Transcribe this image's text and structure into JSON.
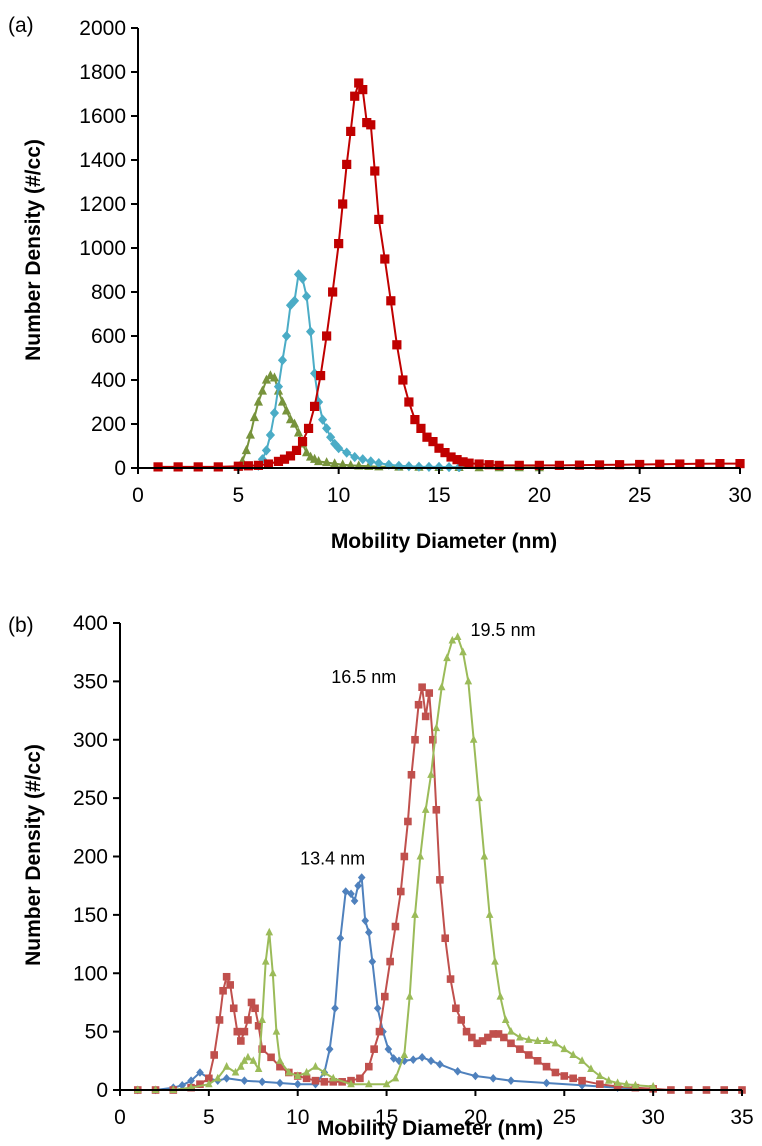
{
  "chart_data": [
    {
      "type": "line",
      "panel_label": "(a)",
      "xlabel": "Mobility Diameter (nm)",
      "ylabel": "Number Density (#/cc)",
      "xlim": [
        0,
        30
      ],
      "ylim": [
        0,
        2000
      ],
      "xticks": [
        0,
        5,
        10,
        15,
        20,
        25,
        30
      ],
      "yticks": [
        0,
        200,
        400,
        600,
        800,
        1000,
        1200,
        1400,
        1600,
        1800,
        2000
      ],
      "grid": false,
      "legend": "none",
      "annotations": [],
      "series": [
        {
          "color": "#77933c",
          "marker": "triangle",
          "x": [
            5.0,
            5.2,
            5.4,
            5.6,
            5.8,
            6.0,
            6.2,
            6.4,
            6.6,
            6.8,
            7.0,
            7.2,
            7.4,
            7.6,
            7.8,
            8.0,
            8.2,
            8.4,
            8.6,
            8.8,
            9.0,
            9.4,
            9.8,
            10.2,
            10.6,
            11.0,
            11.5,
            12.0,
            13.0,
            14.0,
            15.0,
            16.0,
            17.0,
            18.0,
            19.0,
            20.0
          ],
          "y": [
            5,
            30,
            80,
            150,
            230,
            300,
            350,
            400,
            420,
            410,
            350,
            300,
            260,
            220,
            200,
            160,
            110,
            70,
            50,
            40,
            30,
            25,
            20,
            15,
            12,
            10,
            8,
            6,
            5,
            4,
            3,
            3,
            2,
            2,
            2,
            2
          ]
        },
        {
          "color": "#4bacc6",
          "marker": "diamond",
          "x": [
            6.0,
            6.2,
            6.4,
            6.6,
            6.8,
            7.0,
            7.2,
            7.4,
            7.6,
            7.8,
            8.0,
            8.2,
            8.4,
            8.6,
            8.8,
            9.0,
            9.2,
            9.4,
            9.6,
            9.8,
            10.0,
            10.4,
            10.8,
            11.2,
            11.6,
            12.0,
            12.5,
            13.0,
            13.5,
            14.0,
            14.5,
            15.0,
            15.5,
            16.0
          ],
          "y": [
            10,
            40,
            80,
            150,
            250,
            370,
            490,
            600,
            740,
            760,
            880,
            860,
            780,
            620,
            430,
            300,
            220,
            180,
            140,
            110,
            90,
            70,
            50,
            40,
            30,
            22,
            15,
            10,
            8,
            6,
            5,
            5,
            4,
            3
          ]
        },
        {
          "color": "#c00000",
          "marker": "square",
          "x": [
            1,
            2,
            3,
            4,
            5,
            5.5,
            6,
            6.5,
            7,
            7.3,
            7.6,
            7.9,
            8.2,
            8.5,
            8.8,
            9.1,
            9.4,
            9.7,
            10.0,
            10.2,
            10.4,
            10.6,
            10.8,
            11.0,
            11.2,
            11.4,
            11.6,
            11.8,
            12.0,
            12.3,
            12.6,
            12.9,
            13.2,
            13.5,
            13.8,
            14.1,
            14.4,
            14.7,
            15.0,
            15.3,
            15.6,
            15.9,
            16.2,
            16.5,
            17,
            17.5,
            18,
            19,
            20,
            21,
            22,
            23,
            24,
            25,
            26,
            27,
            28,
            29,
            30
          ],
          "y": [
            5,
            5,
            5,
            5,
            8,
            10,
            12,
            18,
            30,
            40,
            55,
            80,
            120,
            180,
            280,
            420,
            600,
            800,
            1020,
            1200,
            1380,
            1530,
            1690,
            1750,
            1720,
            1570,
            1560,
            1350,
            1130,
            950,
            760,
            560,
            400,
            300,
            220,
            180,
            140,
            120,
            90,
            70,
            50,
            38,
            28,
            22,
            18,
            15,
            12,
            12,
            12,
            12,
            13,
            14,
            15,
            16,
            17,
            18,
            19,
            20,
            20
          ]
        }
      ]
    },
    {
      "type": "line",
      "panel_label": "(b)",
      "xlabel": "Mobility Diameter (nm)",
      "ylabel": "Number Density (#/cc)",
      "xlim": [
        0,
        35
      ],
      "ylim": [
        0,
        400
      ],
      "xticks": [
        0,
        5,
        10,
        15,
        20,
        25,
        30,
        35
      ],
      "yticks": [
        0,
        50,
        100,
        150,
        200,
        250,
        300,
        350,
        400
      ],
      "grid": false,
      "legend": "none",
      "annotations": [
        {
          "text": "13.4 nm",
          "x": 13.4,
          "y": 183
        },
        {
          "text": "16.5 nm",
          "x": 16.5,
          "y": 347
        },
        {
          "text": "19.5 nm",
          "x": 19.5,
          "y": 389
        }
      ],
      "series": [
        {
          "color": "#4f81bd",
          "marker": "diamond",
          "x": [
            1,
            2,
            3,
            3.5,
            4.0,
            4.5,
            5.0,
            5.5,
            6.0,
            7.0,
            8.0,
            9.0,
            10.0,
            11.0,
            11.5,
            11.8,
            12.1,
            12.4,
            12.7,
            13.0,
            13.2,
            13.4,
            13.6,
            13.8,
            14.0,
            14.2,
            14.5,
            14.8,
            15.1,
            15.4,
            15.7,
            16.0,
            16.5,
            17.0,
            17.5,
            18.0,
            19.0,
            20.0,
            21.0,
            22.0,
            24.0,
            26.0,
            28.0,
            30.0
          ],
          "y": [
            0,
            0,
            2,
            4,
            8,
            15,
            10,
            8,
            10,
            8,
            7,
            6,
            5,
            5,
            15,
            35,
            70,
            130,
            170,
            168,
            162,
            175,
            182,
            145,
            135,
            110,
            70,
            50,
            35,
            27,
            25,
            25,
            26,
            28,
            25,
            22,
            16,
            12,
            10,
            8,
            6,
            4,
            2,
            1
          ]
        },
        {
          "color": "#c0504d",
          "marker": "square",
          "x": [
            1,
            2,
            3,
            4,
            4.5,
            5.0,
            5.3,
            5.6,
            5.8,
            6.0,
            6.2,
            6.4,
            6.6,
            6.8,
            7.0,
            7.2,
            7.4,
            7.6,
            7.8,
            8.0,
            8.5,
            9.0,
            9.5,
            10.0,
            10.5,
            11.0,
            11.5,
            12.0,
            12.5,
            13.0,
            13.5,
            14.0,
            14.3,
            14.6,
            14.9,
            15.2,
            15.5,
            15.8,
            16.0,
            16.2,
            16.4,
            16.6,
            16.8,
            17.0,
            17.2,
            17.4,
            17.6,
            17.8,
            18.0,
            18.3,
            18.6,
            18.9,
            19.2,
            19.5,
            19.8,
            20.1,
            20.4,
            20.7,
            21.0,
            21.3,
            21.6,
            22.0,
            22.5,
            23.0,
            23.5,
            24.0,
            24.5,
            25.0,
            25.5,
            26.0,
            27.0,
            28.0,
            29.0,
            30.0,
            31.0,
            32.0,
            33.0,
            34.0,
            35.0
          ],
          "y": [
            0,
            0,
            0,
            2,
            5,
            10,
            30,
            60,
            85,
            97,
            90,
            70,
            50,
            42,
            50,
            60,
            75,
            70,
            55,
            35,
            28,
            20,
            15,
            12,
            10,
            8,
            7,
            7,
            7,
            8,
            10,
            20,
            35,
            50,
            80,
            110,
            140,
            170,
            200,
            230,
            270,
            300,
            330,
            345,
            320,
            340,
            300,
            240,
            180,
            130,
            95,
            70,
            60,
            50,
            45,
            40,
            42,
            45,
            48,
            48,
            45,
            40,
            35,
            30,
            25,
            20,
            15,
            12,
            10,
            8,
            5,
            3,
            2,
            1,
            0,
            0,
            0,
            0,
            0
          ]
        },
        {
          "color": "#9bbb59",
          "marker": "triangle",
          "x": [
            1,
            2,
            3,
            4,
            5.0,
            5.5,
            6.0,
            6.5,
            6.8,
            7.0,
            7.2,
            7.5,
            7.8,
            8.0,
            8.2,
            8.4,
            8.6,
            8.8,
            9.0,
            9.5,
            10.0,
            10.5,
            11.0,
            11.5,
            12.0,
            13.0,
            14.0,
            15.0,
            15.5,
            16.0,
            16.3,
            16.6,
            16.9,
            17.2,
            17.5,
            17.8,
            18.1,
            18.4,
            18.7,
            19.0,
            19.3,
            19.6,
            19.9,
            20.2,
            20.5,
            20.8,
            21.1,
            21.4,
            21.7,
            22.0,
            22.5,
            23.0,
            23.5,
            24.0,
            24.5,
            25.0,
            25.5,
            26.0,
            26.5,
            27.0,
            27.5,
            28.0,
            28.5,
            29.0,
            30.0
          ],
          "y": [
            0,
            0,
            0,
            2,
            5,
            10,
            20,
            15,
            20,
            25,
            28,
            25,
            18,
            60,
            110,
            135,
            100,
            50,
            25,
            15,
            12,
            15,
            20,
            15,
            10,
            5,
            5,
            5,
            10,
            30,
            80,
            150,
            200,
            240,
            270,
            310,
            345,
            370,
            385,
            388,
            375,
            350,
            300,
            250,
            200,
            150,
            110,
            80,
            60,
            50,
            45,
            43,
            42,
            42,
            40,
            35,
            30,
            25,
            18,
            12,
            8,
            6,
            5,
            4,
            3
          ]
        }
      ]
    }
  ]
}
